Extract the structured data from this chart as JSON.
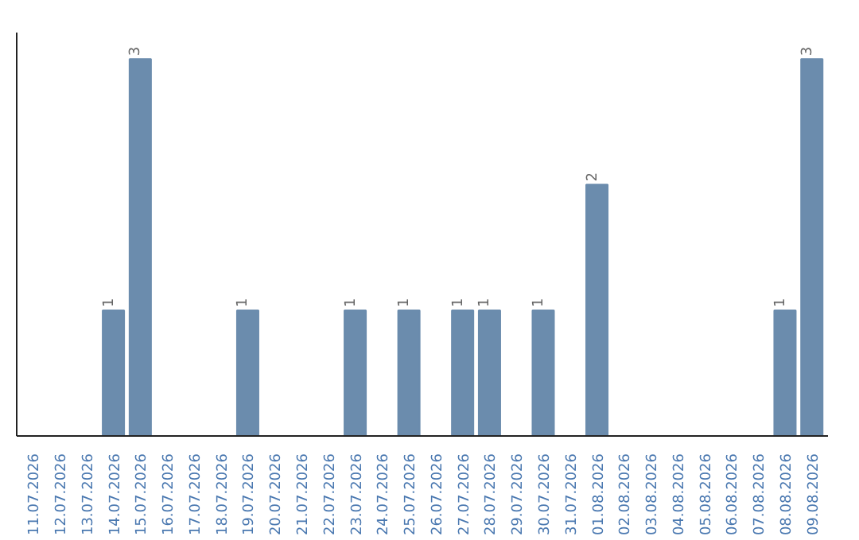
{
  "chart_data": {
    "type": "bar",
    "categories": [
      "11.07.2026",
      "12.07.2026",
      "13.07.2026",
      "14.07.2026",
      "15.07.2026",
      "16.07.2026",
      "17.07.2026",
      "18.07.2026",
      "19.07.2026",
      "20.07.2026",
      "21.07.2026",
      "22.07.2026",
      "23.07.2026",
      "24.07.2026",
      "25.07.2026",
      "26.07.2026",
      "27.07.2026",
      "28.07.2026",
      "29.07.2026",
      "30.07.2026",
      "31.07.2026",
      "01.08.2026",
      "02.08.2026",
      "03.08.2026",
      "04.08.2026",
      "05.08.2026",
      "06.08.2026",
      "07.08.2026",
      "08.08.2026",
      "09.08.2026"
    ],
    "values": [
      0,
      0,
      0,
      1,
      3,
      0,
      0,
      0,
      1,
      0,
      0,
      0,
      1,
      0,
      1,
      0,
      1,
      1,
      0,
      1,
      0,
      2,
      0,
      0,
      0,
      0,
      0,
      0,
      1,
      3
    ],
    "value_labels": [
      null,
      null,
      null,
      "1",
      "3",
      null,
      null,
      null,
      "1",
      null,
      null,
      null,
      "1",
      null,
      "1",
      null,
      "1",
      "1",
      null,
      "1",
      null,
      "2",
      null,
      null,
      null,
      null,
      null,
      null,
      "1",
      "3"
    ],
    "color": "#6b8cad",
    "tick_labels": "x",
    "grid": false
  }
}
